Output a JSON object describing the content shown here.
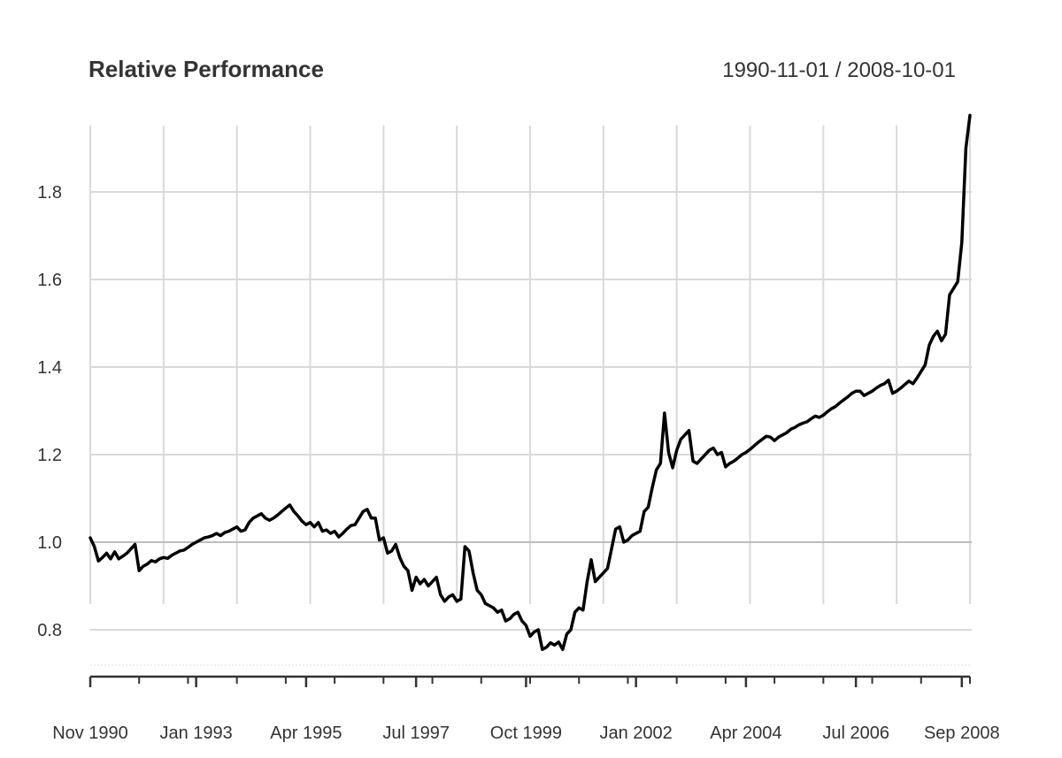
{
  "chart_data": {
    "type": "line",
    "title": "Relative Performance",
    "date_range": "1990-11-01 / 2008-10-01",
    "xlabel": "",
    "ylabel": "",
    "ylim": [
      0.7,
      2.0
    ],
    "y_ticks": [
      0.8,
      1.0,
      1.2,
      1.4,
      1.6,
      1.8
    ],
    "y_tick_labels": [
      "0.8",
      "1.0",
      "1.2",
      "1.4",
      "1.6",
      "1.8"
    ],
    "reference_line": 1.0,
    "grid": true,
    "x_start": "1990-11",
    "x_end": "2008-10",
    "x_ticks": [
      {
        "label": "Nov 1990",
        "month_index": 0
      },
      {
        "label": "Jan 1993",
        "month_index": 26
      },
      {
        "label": "Apr 1995",
        "month_index": 53
      },
      {
        "label": "Jul 1997",
        "month_index": 80
      },
      {
        "label": "Oct 1999",
        "month_index": 107
      },
      {
        "label": "Jan 2002",
        "month_index": 134
      },
      {
        "label": "Apr 2004",
        "month_index": 161
      },
      {
        "label": "Jul 2006",
        "month_index": 188
      },
      {
        "label": "Sep 2008",
        "month_index": 214
      }
    ],
    "series": [
      {
        "name": "Relative Performance",
        "color": "#000000",
        "values": [
          1.01,
          0.99,
          0.957,
          0.965,
          0.975,
          0.962,
          0.978,
          0.962,
          0.968,
          0.975,
          0.985,
          0.995,
          0.935,
          0.945,
          0.95,
          0.958,
          0.955,
          0.962,
          0.965,
          0.963,
          0.97,
          0.975,
          0.98,
          0.982,
          0.988,
          0.995,
          1.0,
          1.005,
          1.01,
          1.012,
          1.015,
          1.02,
          1.015,
          1.022,
          1.025,
          1.03,
          1.035,
          1.025,
          1.028,
          1.045,
          1.055,
          1.06,
          1.065,
          1.055,
          1.05,
          1.055,
          1.062,
          1.07,
          1.078,
          1.085,
          1.07,
          1.06,
          1.048,
          1.04,
          1.045,
          1.035,
          1.045,
          1.025,
          1.028,
          1.02,
          1.025,
          1.012,
          1.02,
          1.03,
          1.038,
          1.04,
          1.055,
          1.07,
          1.075,
          1.055,
          1.055,
          1.005,
          1.01,
          0.975,
          0.98,
          0.995,
          0.965,
          0.945,
          0.935,
          0.89,
          0.92,
          0.905,
          0.915,
          0.9,
          0.91,
          0.92,
          0.88,
          0.865,
          0.875,
          0.88,
          0.865,
          0.87,
          0.99,
          0.98,
          0.93,
          0.89,
          0.88,
          0.86,
          0.855,
          0.85,
          0.84,
          0.845,
          0.82,
          0.825,
          0.835,
          0.84,
          0.82,
          0.81,
          0.785,
          0.795,
          0.8,
          0.755,
          0.76,
          0.77,
          0.765,
          0.772,
          0.755,
          0.79,
          0.8,
          0.84,
          0.85,
          0.845,
          0.91,
          0.96,
          0.91,
          0.92,
          0.93,
          0.94,
          0.985,
          1.03,
          1.035,
          1.0,
          1.005,
          1.015,
          1.02,
          1.025,
          1.07,
          1.08,
          1.125,
          1.165,
          1.18,
          1.295,
          1.205,
          1.17,
          1.21,
          1.235,
          1.245,
          1.255,
          1.185,
          1.18,
          1.19,
          1.2,
          1.21,
          1.215,
          1.2,
          1.205,
          1.172,
          1.18,
          1.185,
          1.192,
          1.2,
          1.205,
          1.212,
          1.22,
          1.228,
          1.235,
          1.242,
          1.24,
          1.232,
          1.24,
          1.245,
          1.25,
          1.258,
          1.262,
          1.268,
          1.272,
          1.275,
          1.282,
          1.288,
          1.285,
          1.29,
          1.298,
          1.305,
          1.31,
          1.318,
          1.325,
          1.332,
          1.34,
          1.345,
          1.345,
          1.335,
          1.34,
          1.345,
          1.352,
          1.358,
          1.362,
          1.37,
          1.34,
          1.345,
          1.352,
          1.36,
          1.368,
          1.362,
          1.375,
          1.39,
          1.405,
          1.45,
          1.47,
          1.482,
          1.46,
          1.475,
          1.565,
          1.58,
          1.595,
          1.685,
          1.9,
          1.975
        ]
      }
    ]
  }
}
